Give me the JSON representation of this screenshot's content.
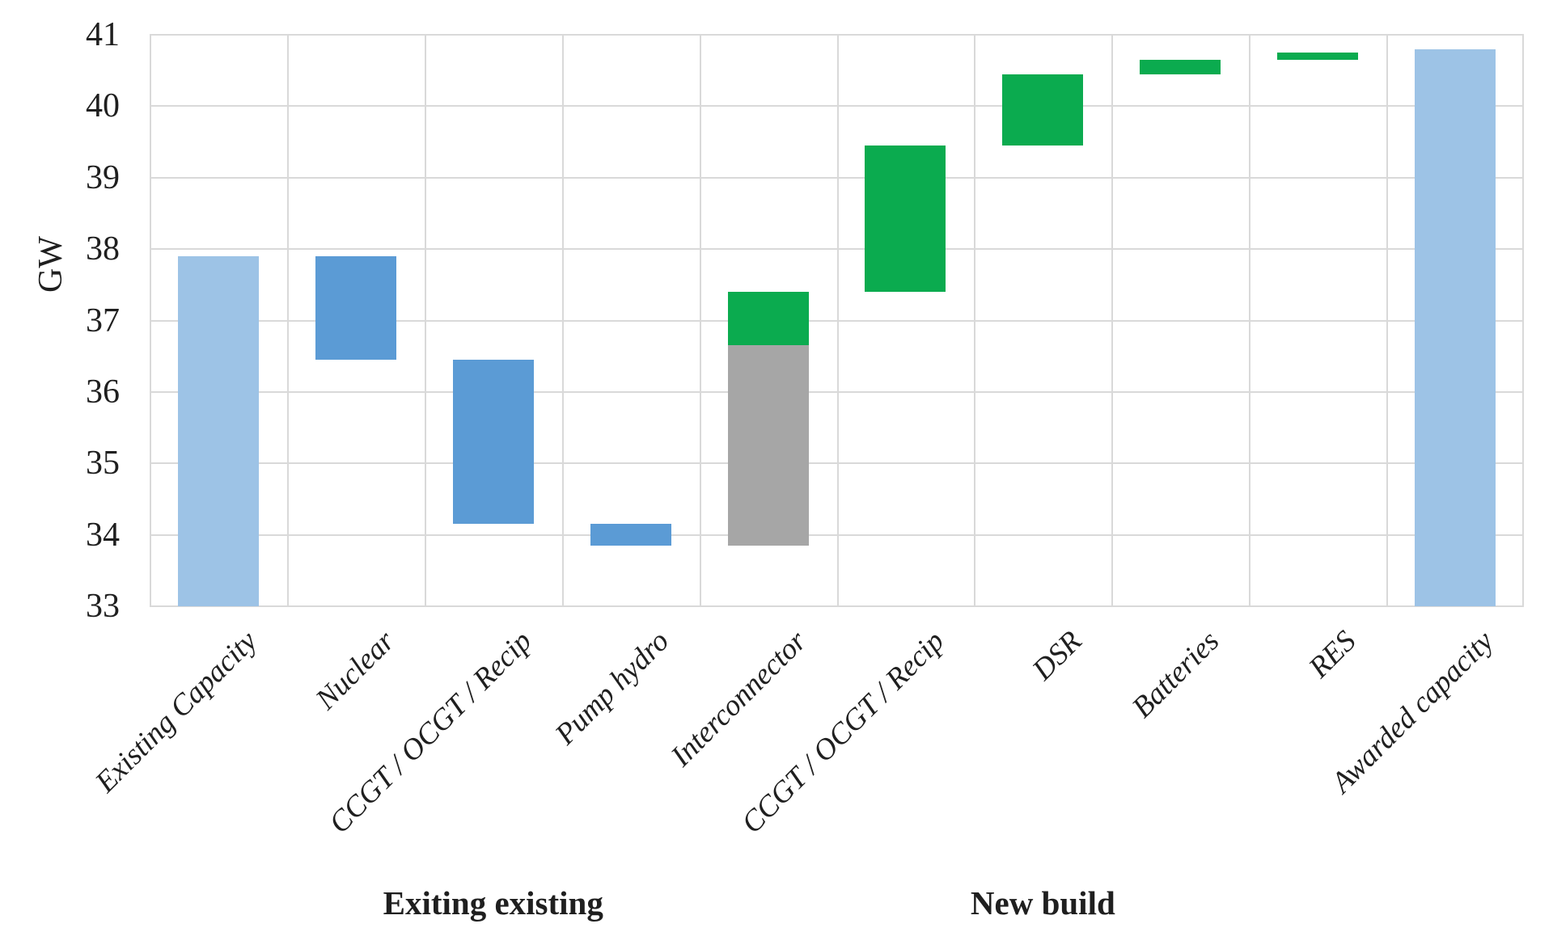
{
  "chart_data": {
    "type": "bar",
    "subtype": "waterfall",
    "title": "",
    "ylabel": "GW",
    "xlabel": "",
    "ylim": [
      33,
      41
    ],
    "yticks": [
      33,
      34,
      35,
      36,
      37,
      38,
      39,
      40,
      41
    ],
    "grid": "both",
    "legend": "none",
    "colors": {
      "light_blue": "#9dc3e6",
      "blue": "#5b9bd5",
      "green": "#0bab4f",
      "gray": "#a6a6a6",
      "gridline": "#d9d9d9",
      "text": "#1f1f1f"
    },
    "categories": [
      "Existing Capacity",
      "Nuclear",
      "CCGT / OCGT / Recip",
      "Pump hydro",
      "Interconnector",
      "CCGT / OCGT / Recip",
      "DSR",
      "Batteries",
      "RES",
      "Awarded capacity"
    ],
    "bars": [
      {
        "label": "Existing Capacity",
        "segments": [
          {
            "from": 33,
            "to": 37.9,
            "color": "light_blue"
          }
        ]
      },
      {
        "label": "Nuclear",
        "segments": [
          {
            "from": 36.45,
            "to": 37.9,
            "color": "blue"
          }
        ]
      },
      {
        "label": "CCGT / OCGT / Recip",
        "segments": [
          {
            "from": 34.15,
            "to": 36.45,
            "color": "blue"
          }
        ]
      },
      {
        "label": "Pump hydro",
        "segments": [
          {
            "from": 33.85,
            "to": 34.15,
            "color": "blue"
          }
        ]
      },
      {
        "label": "Interconnector",
        "segments": [
          {
            "from": 33.85,
            "to": 36.65,
            "color": "gray"
          },
          {
            "from": 36.65,
            "to": 37.4,
            "color": "green"
          }
        ]
      },
      {
        "label": "CCGT / OCGT / Recip",
        "segments": [
          {
            "from": 37.4,
            "to": 39.45,
            "color": "green"
          }
        ]
      },
      {
        "label": "DSR",
        "segments": [
          {
            "from": 39.45,
            "to": 40.45,
            "color": "green"
          }
        ]
      },
      {
        "label": "Batteries",
        "segments": [
          {
            "from": 40.45,
            "to": 40.65,
            "color": "green"
          }
        ]
      },
      {
        "label": "RES",
        "segments": [
          {
            "from": 40.65,
            "to": 40.75,
            "color": "green"
          }
        ]
      },
      {
        "label": "Awarded capacity",
        "segments": [
          {
            "from": 33,
            "to": 40.8,
            "color": "light_blue"
          }
        ]
      }
    ],
    "group_labels": [
      {
        "text": "Exiting existing",
        "at_category": 2
      },
      {
        "text": "New build",
        "at_category": 6
      }
    ]
  }
}
